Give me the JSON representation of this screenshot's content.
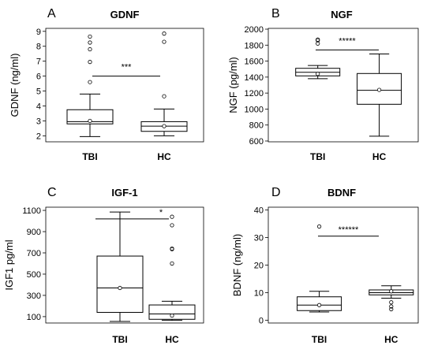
{
  "figure_colors": {
    "box_fill": "#ffffff",
    "line": "#000000",
    "mean_marker": "#ffffff",
    "outlier": "#000000"
  },
  "chart_data": [
    {
      "type": "box",
      "panel": "A",
      "title": "GDNF",
      "ylabel": "GDNF (ng/ml)",
      "ylim": [
        1.6,
        9.2
      ],
      "yticks": [
        2,
        3,
        4,
        5,
        6,
        7,
        8,
        9
      ],
      "categories": [
        "TBI",
        "HC"
      ],
      "boxes": [
        {
          "whisker_low": 1.95,
          "q1": 2.8,
          "median": 2.95,
          "q3": 3.75,
          "whisker_high": 4.8,
          "mean": 3.0,
          "outliers": [
            5.6,
            6.95,
            7.8,
            8.25,
            8.65
          ]
        },
        {
          "whisker_low": 2.0,
          "q1": 2.3,
          "median": 2.65,
          "q3": 2.95,
          "whisker_high": 3.8,
          "mean": 2.65,
          "outliers": [
            4.65,
            8.3,
            8.85
          ]
        }
      ],
      "significance": "***"
    },
    {
      "type": "box",
      "panel": "B",
      "title": "NGF",
      "ylabel": "NGF (pg/ml)",
      "ylim": [
        590,
        2010
      ],
      "yticks": [
        600,
        800,
        1000,
        1200,
        1400,
        1600,
        1800,
        2000
      ],
      "categories": [
        "TBI",
        "HC"
      ],
      "boxes": [
        {
          "whisker_low": 1380,
          "q1": 1415,
          "median": 1460,
          "q3": 1510,
          "whisker_high": 1545,
          "mean": 1440,
          "outliers": [
            1820,
            1860,
            1870
          ]
        },
        {
          "whisker_low": 660,
          "q1": 1060,
          "median": 1235,
          "q3": 1445,
          "whisker_high": 1690,
          "mean": 1240,
          "outliers": []
        }
      ],
      "significance": "*****"
    },
    {
      "type": "box",
      "panel": "C",
      "title": "IGF-1",
      "ylabel": "IGF1  pg/ml",
      "ylim": [
        40,
        1130
      ],
      "yticks": [
        100,
        300,
        500,
        700,
        900,
        1100
      ],
      "categories": [
        "TBI",
        "HC"
      ],
      "boxes": [
        {
          "whisker_low": 55,
          "q1": 140,
          "median": 370,
          "q3": 670,
          "whisker_high": 1085,
          "mean": 370,
          "outliers": []
        },
        {
          "whisker_low": 65,
          "q1": 75,
          "median": 125,
          "q3": 210,
          "whisker_high": 245,
          "mean": 110,
          "outliers": [
            600,
            735,
            740,
            960,
            1040
          ]
        }
      ],
      "significance": "*"
    },
    {
      "type": "box",
      "panel": "D",
      "title": "BDNF",
      "ylabel": "BDNF (ng/ml)",
      "ylim": [
        -1,
        41
      ],
      "yticks": [
        0,
        10,
        20,
        30,
        40
      ],
      "categories": [
        "TBI",
        "HC"
      ],
      "boxes": [
        {
          "whisker_low": 3.0,
          "q1": 3.5,
          "median": 5.5,
          "q3": 8.5,
          "whisker_high": 10.5,
          "mean": 5.5,
          "outliers": [
            34
          ]
        },
        {
          "whisker_low": 8.0,
          "q1": 9.2,
          "median": 10.0,
          "q3": 11.0,
          "whisker_high": 12.5,
          "mean": 10.5,
          "outliers": [
            4,
            5,
            6.5
          ]
        }
      ],
      "significance": "******"
    }
  ]
}
